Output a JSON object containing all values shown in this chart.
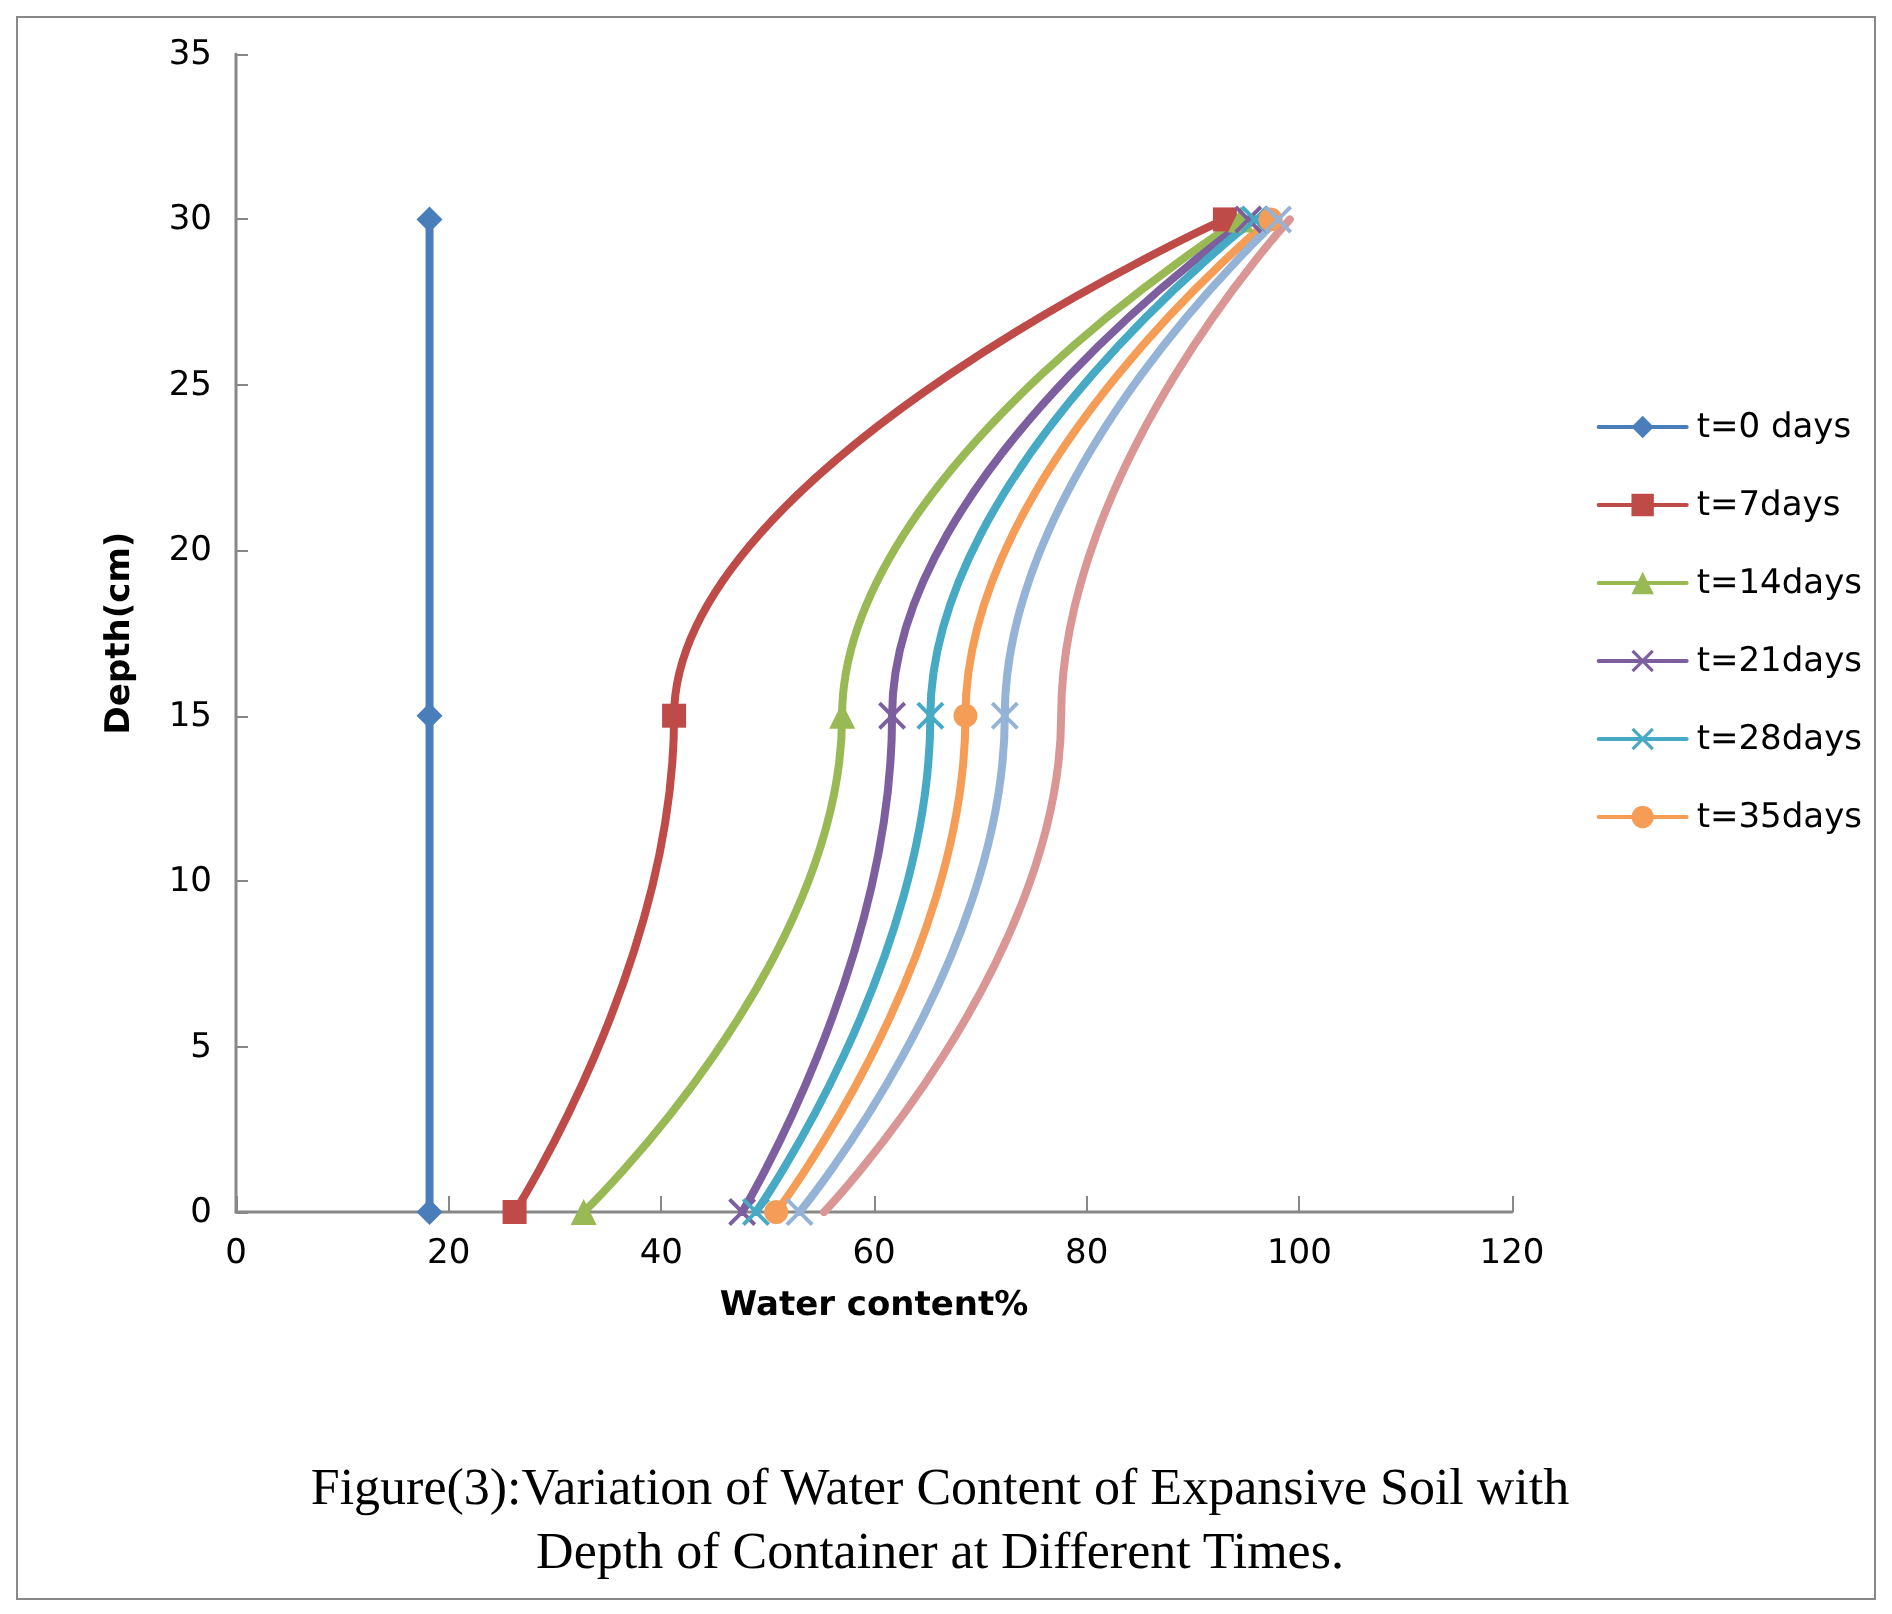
{
  "chart_data": {
    "type": "line",
    "xlabel": "Water content%",
    "ylabel": "Depth(cm)",
    "xlim": [
      0,
      120
    ],
    "xticks": [
      0,
      20,
      40,
      60,
      80,
      100,
      120
    ],
    "ylim": [
      0,
      35
    ],
    "yticks": [
      0,
      5,
      10,
      15,
      20,
      25,
      30,
      35
    ],
    "grid": false,
    "legend": "right",
    "annotations": [
      "Figure(3):Variation of Water Content of Expansive Soil with Depth of Container at Different Times."
    ],
    "series": [
      {
        "name": "t=0 days",
        "color": "#4a7ebb",
        "marker": "diamond",
        "x": [
          18.2,
          18.2,
          18.2
        ],
        "values": [
          0,
          15,
          30
        ]
      },
      {
        "name": "t=7days",
        "color": "#be4b48",
        "marker": "square",
        "x": [
          26.2,
          41.2,
          93.0
        ],
        "values": [
          0,
          15,
          30
        ]
      },
      {
        "name": "t=14days",
        "color": "#98b954",
        "marker": "triangle",
        "x": [
          32.7,
          57.0,
          94.5
        ],
        "values": [
          0,
          15,
          30
        ]
      },
      {
        "name": "t=21days",
        "color": "#7d5fa0",
        "marker": "cross",
        "x": [
          47.6,
          61.7,
          95.2
        ],
        "values": [
          0,
          15,
          30
        ]
      },
      {
        "name": "t=28days",
        "color": "#46aac5",
        "marker": "cross",
        "x": [
          48.9,
          65.3,
          95.8
        ],
        "values": [
          0,
          15,
          30
        ]
      },
      {
        "name": "t=35days",
        "color": "#f59d56",
        "marker": "circle",
        "x": [
          50.8,
          68.6,
          97.3
        ],
        "values": [
          0,
          15,
          30
        ]
      },
      {
        "color": "#95b3d7",
        "marker": "cross",
        "x": [
          53.0,
          72.3,
          98.0
        ],
        "values": [
          0,
          15,
          30
        ]
      },
      {
        "color": "#d99694",
        "marker": "none",
        "x": [
          55.3,
          77.6,
          99.1
        ],
        "values": [
          0,
          15,
          30
        ]
      }
    ]
  }
}
